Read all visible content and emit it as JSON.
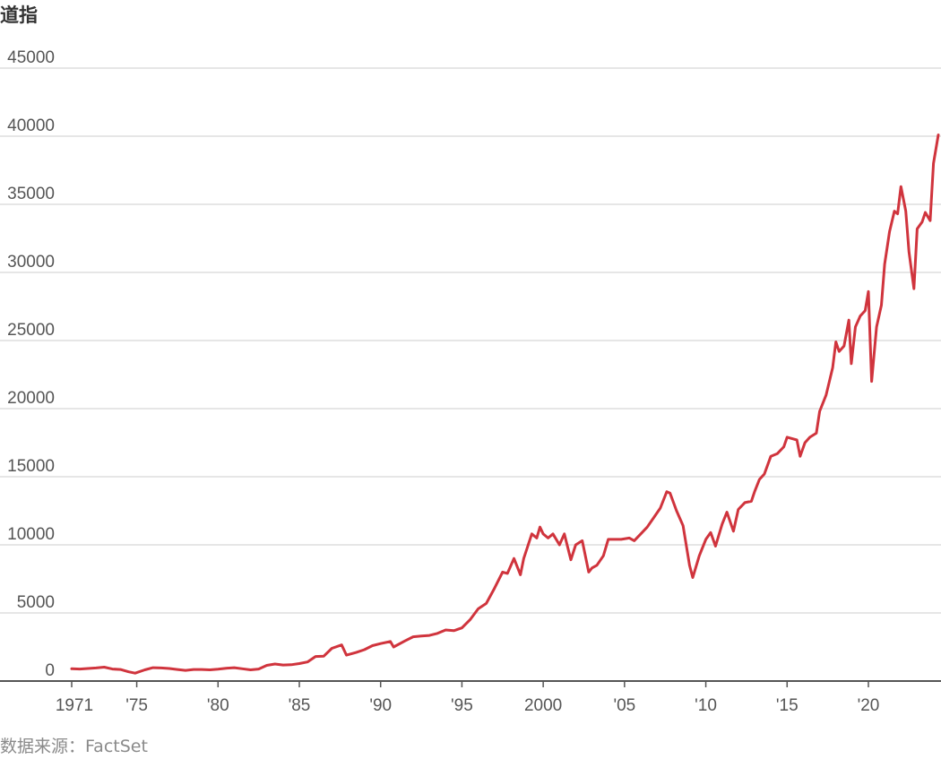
{
  "chart_data": {
    "type": "line",
    "title": "道指",
    "source": "数据来源：FactSet",
    "xlabel": "",
    "ylabel": "",
    "xlim": [
      1971,
      2024.3
    ],
    "ylim": [
      0,
      45000
    ],
    "grid": true,
    "y_ticks": [
      0,
      5000,
      10000,
      15000,
      20000,
      25000,
      30000,
      35000,
      40000,
      45000
    ],
    "y_tick_labels": [
      "0",
      "5000",
      "10000",
      "15000",
      "20000",
      "25000",
      "30000",
      "35000",
      "40000",
      "45000"
    ],
    "x_ticks": [
      1971,
      1975,
      1980,
      1985,
      1990,
      1995,
      2000,
      2005,
      2010,
      2015,
      2020
    ],
    "x_tick_labels": [
      "1971",
      "'75",
      "'80",
      "'85",
      "'90",
      "'95",
      "2000",
      "'05",
      "'10",
      "'15",
      "'20"
    ],
    "series": [
      {
        "color": "#d0343d",
        "x": [
          1971.0,
          1971.5,
          1972.0,
          1972.5,
          1973.0,
          1973.5,
          1974.0,
          1974.5,
          1974.9,
          1975.5,
          1976.0,
          1976.5,
          1977.0,
          1977.5,
          1978.0,
          1978.5,
          1979.0,
          1979.5,
          1980.0,
          1980.5,
          1981.0,
          1981.5,
          1982.0,
          1982.5,
          1983.0,
          1983.5,
          1984.0,
          1984.5,
          1985.0,
          1985.5,
          1986.0,
          1986.5,
          1987.0,
          1987.6,
          1987.9,
          1988.5,
          1989.0,
          1989.5,
          1990.0,
          1990.6,
          1990.8,
          1991.5,
          1992.0,
          1992.5,
          1993.0,
          1993.5,
          1994.0,
          1994.5,
          1995.0,
          1995.5,
          1996.0,
          1996.5,
          1997.0,
          1997.5,
          1997.8,
          1998.2,
          1998.6,
          1998.8,
          1999.3,
          1999.6,
          1999.8,
          2000.0,
          2000.3,
          2000.6,
          2001.0,
          2001.3,
          2001.7,
          2002.0,
          2002.4,
          2002.8,
          2003.0,
          2003.3,
          2003.7,
          2004.0,
          2004.5,
          2004.8,
          2005.3,
          2005.6,
          2006.0,
          2006.4,
          2006.8,
          2007.2,
          2007.6,
          2007.8,
          2008.2,
          2008.6,
          2009.0,
          2009.2,
          2009.6,
          2010.0,
          2010.3,
          2010.6,
          2011.0,
          2011.3,
          2011.7,
          2012.0,
          2012.4,
          2012.8,
          2013.0,
          2013.3,
          2013.6,
          2014.0,
          2014.4,
          2014.8,
          2015.0,
          2015.3,
          2015.6,
          2015.8,
          2016.1,
          2016.4,
          2016.8,
          2017.0,
          2017.4,
          2017.8,
          2018.0,
          2018.2,
          2018.5,
          2018.8,
          2018.95,
          2019.2,
          2019.5,
          2019.8,
          2020.0,
          2020.2,
          2020.5,
          2020.8,
          2021.0,
          2021.3,
          2021.6,
          2021.8,
          2022.0,
          2022.3,
          2022.5,
          2022.8,
          2023.0,
          2023.3,
          2023.5,
          2023.8,
          2024.0,
          2024.3
        ],
        "y": [
          900,
          880,
          920,
          960,
          1020,
          880,
          850,
          680,
          580,
          820,
          980,
          960,
          920,
          850,
          780,
          850,
          850,
          820,
          870,
          940,
          980,
          900,
          820,
          880,
          1150,
          1250,
          1180,
          1200,
          1280,
          1400,
          1800,
          1820,
          2400,
          2650,
          1900,
          2100,
          2300,
          2600,
          2750,
          2900,
          2500,
          2950,
          3250,
          3300,
          3350,
          3500,
          3750,
          3700,
          3900,
          4500,
          5300,
          5700,
          6800,
          8000,
          7900,
          9000,
          7800,
          9000,
          10800,
          10500,
          11300,
          10800,
          10500,
          10800,
          10000,
          10800,
          8900,
          10000,
          10300,
          8000,
          8300,
          8500,
          9200,
          10400,
          10400,
          10400,
          10500,
          10300,
          10800,
          11300,
          12000,
          12700,
          13900,
          13800,
          12500,
          11400,
          8500,
          7600,
          9200,
          10400,
          10900,
          9900,
          11500,
          12400,
          11000,
          12600,
          13100,
          13200,
          13900,
          14800,
          15200,
          16500,
          16700,
          17200,
          17900,
          17800,
          17700,
          16500,
          17500,
          17900,
          18200,
          19800,
          21000,
          23000,
          24900,
          24200,
          24600,
          26500,
          23300,
          26000,
          26800,
          27200,
          28600,
          22000,
          26000,
          27600,
          30600,
          33000,
          34500,
          34300,
          36300,
          34500,
          31500,
          28800,
          33200,
          33700,
          34400,
          33800,
          38000,
          40100
        ]
      }
    ]
  }
}
